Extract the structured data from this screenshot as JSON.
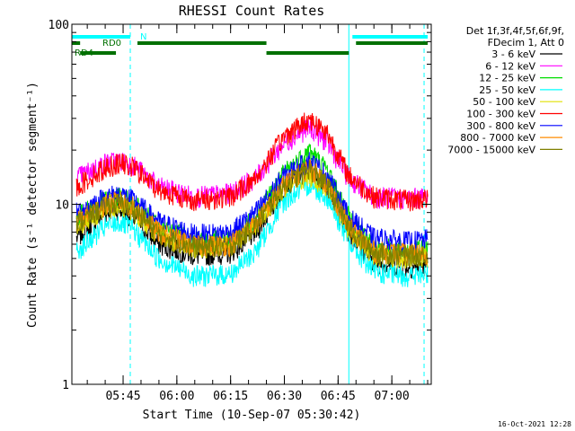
{
  "chart_data": {
    "type": "line",
    "title": "RHESSI Count Rates",
    "xlabel": "Start Time (10-Sep-07 05:30:42)",
    "ylabel": "Count Rate (s⁻¹ detector segment⁻¹)",
    "yscale": "log",
    "ylim": [
      1,
      100
    ],
    "xlim": [
      "05:30:42",
      "07:11:00"
    ],
    "x_ticks": [
      "05:45",
      "06:00",
      "06:15",
      "06:30",
      "06:45",
      "07:00"
    ],
    "y_ticks": [
      "1",
      "10",
      "100"
    ],
    "legend_header": [
      "Det 1f,3f,4f,5f,6f,9f,",
      "FDecim 1, Att 0"
    ],
    "legend_placement": "right",
    "footer": "16-Oct-2021 12:28",
    "series": [
      {
        "name": "3 - 6 keV",
        "color": "#000000",
        "points": [
          [
            "05:32",
            6.5
          ],
          [
            "05:40",
            9.0
          ],
          [
            "05:43",
            9.5
          ],
          [
            "05:48",
            8.5
          ],
          [
            "05:55",
            6.0
          ],
          [
            "06:05",
            5.2
          ],
          [
            "06:15",
            5.4
          ],
          [
            "06:22",
            7.0
          ],
          [
            "06:30",
            12.5
          ],
          [
            "06:37",
            16.5
          ],
          [
            "06:42",
            12.0
          ],
          [
            "06:48",
            7.0
          ],
          [
            "06:55",
            4.8
          ],
          [
            "07:05",
            4.5
          ],
          [
            "07:10",
            4.6
          ]
        ]
      },
      {
        "name": "6 - 12 keV",
        "color": "#ff00ff",
        "points": [
          [
            "05:32",
            14.0
          ],
          [
            "05:40",
            17.0
          ],
          [
            "05:44",
            17.5
          ],
          [
            "05:48",
            16.5
          ],
          [
            "05:55",
            12.5
          ],
          [
            "06:05",
            11.0
          ],
          [
            "06:15",
            11.5
          ],
          [
            "06:22",
            14.0
          ],
          [
            "06:30",
            22.0
          ],
          [
            "06:37",
            27.0
          ],
          [
            "06:42",
            22.0
          ],
          [
            "06:48",
            14.0
          ],
          [
            "06:55",
            11.0
          ],
          [
            "07:05",
            10.8
          ],
          [
            "07:10",
            11.0
          ]
        ]
      },
      {
        "name": "12 - 25 keV",
        "color": "#00dd00",
        "points": [
          [
            "05:32",
            8.5
          ],
          [
            "05:40",
            10.5
          ],
          [
            "05:44",
            11.0
          ],
          [
            "05:48",
            10.0
          ],
          [
            "05:55",
            7.5
          ],
          [
            "06:05",
            6.3
          ],
          [
            "06:15",
            6.3
          ],
          [
            "06:22",
            8.5
          ],
          [
            "06:30",
            15.0
          ],
          [
            "06:37",
            20.0
          ],
          [
            "06:42",
            15.5
          ],
          [
            "06:48",
            8.5
          ],
          [
            "06:55",
            5.8
          ],
          [
            "07:05",
            5.5
          ],
          [
            "07:10",
            5.7
          ]
        ]
      },
      {
        "name": "25 - 50 keV",
        "color": "#00ffff",
        "points": [
          [
            "05:32",
            5.5
          ],
          [
            "05:40",
            7.5
          ],
          [
            "05:44",
            8.0
          ],
          [
            "05:48",
            7.2
          ],
          [
            "05:55",
            5.0
          ],
          [
            "06:05",
            4.0
          ],
          [
            "06:15",
            4.1
          ],
          [
            "06:22",
            5.5
          ],
          [
            "06:30",
            10.5
          ],
          [
            "06:37",
            13.0
          ],
          [
            "06:42",
            11.0
          ],
          [
            "06:48",
            6.2
          ],
          [
            "06:55",
            4.2
          ],
          [
            "07:05",
            4.0
          ],
          [
            "07:10",
            4.1
          ]
        ]
      },
      {
        "name": "50 - 100 keV",
        "color": "#e0e000",
        "points": [
          [
            "05:32",
            7.5
          ],
          [
            "05:40",
            9.5
          ],
          [
            "05:44",
            10.0
          ],
          [
            "05:48",
            9.2
          ],
          [
            "05:55",
            6.8
          ],
          [
            "06:05",
            5.7
          ],
          [
            "06:15",
            5.9
          ],
          [
            "06:22",
            7.8
          ],
          [
            "06:30",
            12.5
          ],
          [
            "06:37",
            14.5
          ],
          [
            "06:42",
            12.5
          ],
          [
            "06:48",
            7.2
          ],
          [
            "06:55",
            5.3
          ],
          [
            "07:05",
            5.0
          ],
          [
            "07:10",
            5.1
          ]
        ]
      },
      {
        "name": "100 - 300 keV",
        "color": "#ff0000",
        "points": [
          [
            "05:32",
            12.5
          ],
          [
            "05:40",
            16.0
          ],
          [
            "05:44",
            17.0
          ],
          [
            "05:48",
            16.0
          ],
          [
            "05:55",
            12.0
          ],
          [
            "06:05",
            10.5
          ],
          [
            "06:15",
            11.0
          ],
          [
            "06:22",
            14.0
          ],
          [
            "06:30",
            24.0
          ],
          [
            "06:37",
            30.0
          ],
          [
            "06:42",
            25.0
          ],
          [
            "06:48",
            14.5
          ],
          [
            "06:55",
            11.0
          ],
          [
            "07:05",
            10.5
          ],
          [
            "07:10",
            10.8
          ]
        ]
      },
      {
        "name": "300 - 800 keV",
        "color": "#0000ff",
        "points": [
          [
            "05:32",
            9.0
          ],
          [
            "05:40",
            11.0
          ],
          [
            "05:44",
            11.5
          ],
          [
            "05:48",
            10.5
          ],
          [
            "05:55",
            8.0
          ],
          [
            "06:05",
            6.8
          ],
          [
            "06:15",
            7.0
          ],
          [
            "06:22",
            9.0
          ],
          [
            "06:30",
            14.5
          ],
          [
            "06:37",
            17.5
          ],
          [
            "06:42",
            14.5
          ],
          [
            "06:48",
            8.5
          ],
          [
            "06:55",
            6.5
          ],
          [
            "07:05",
            6.2
          ],
          [
            "07:10",
            6.4
          ]
        ]
      },
      {
        "name": "800 - 7000 keV",
        "color": "#ff8c00",
        "points": [
          [
            "05:32",
            8.0
          ],
          [
            "05:40",
            10.0
          ],
          [
            "05:44",
            10.5
          ],
          [
            "05:48",
            9.6
          ],
          [
            "05:55",
            7.0
          ],
          [
            "06:05",
            5.9
          ],
          [
            "06:15",
            6.0
          ],
          [
            "06:22",
            7.8
          ],
          [
            "06:30",
            13.0
          ],
          [
            "06:37",
            16.0
          ],
          [
            "06:42",
            13.0
          ],
          [
            "06:48",
            7.5
          ],
          [
            "06:55",
            5.5
          ],
          [
            "07:05",
            5.3
          ],
          [
            "07:10",
            5.4
          ]
        ]
      },
      {
        "name": "7000 - 15000 keV",
        "color": "#808000",
        "points": [
          [
            "05:32",
            7.8
          ],
          [
            "05:40",
            9.8
          ],
          [
            "05:44",
            10.2
          ],
          [
            "05:48",
            9.4
          ],
          [
            "05:55",
            6.9
          ],
          [
            "06:05",
            5.8
          ],
          [
            "06:15",
            5.9
          ],
          [
            "06:22",
            7.7
          ],
          [
            "06:30",
            12.8
          ],
          [
            "06:37",
            15.8
          ],
          [
            "06:42",
            12.8
          ],
          [
            "06:48",
            7.4
          ],
          [
            "06:55",
            5.4
          ],
          [
            "07:05",
            5.2
          ],
          [
            "07:10",
            5.3
          ]
        ]
      }
    ],
    "attenuator_bars": [
      {
        "label": "N",
        "color": "#00ffff",
        "segments": [
          [
            "05:30:42",
            "05:47"
          ],
          [
            "06:49",
            "07:10"
          ]
        ]
      },
      {
        "label": "RD0",
        "color": "#007000",
        "segments": [
          [
            "05:30:42",
            "05:33"
          ],
          [
            "05:49",
            "06:25"
          ],
          [
            "06:50",
            "07:10"
          ]
        ]
      },
      {
        "label": "RD4",
        "color": "#007000",
        "segments": [
          [
            "05:33",
            "05:43"
          ],
          [
            "06:25",
            "06:48"
          ]
        ]
      }
    ],
    "vertical_markers": [
      {
        "time": "05:30:42",
        "color": "#00ffff",
        "style": "solid"
      },
      {
        "time": "05:47",
        "color": "#00ffff",
        "style": "dashed"
      },
      {
        "time": "06:48",
        "color": "#00ffff",
        "style": "solid"
      },
      {
        "time": "07:09",
        "color": "#00ffff",
        "style": "dashed"
      }
    ]
  }
}
